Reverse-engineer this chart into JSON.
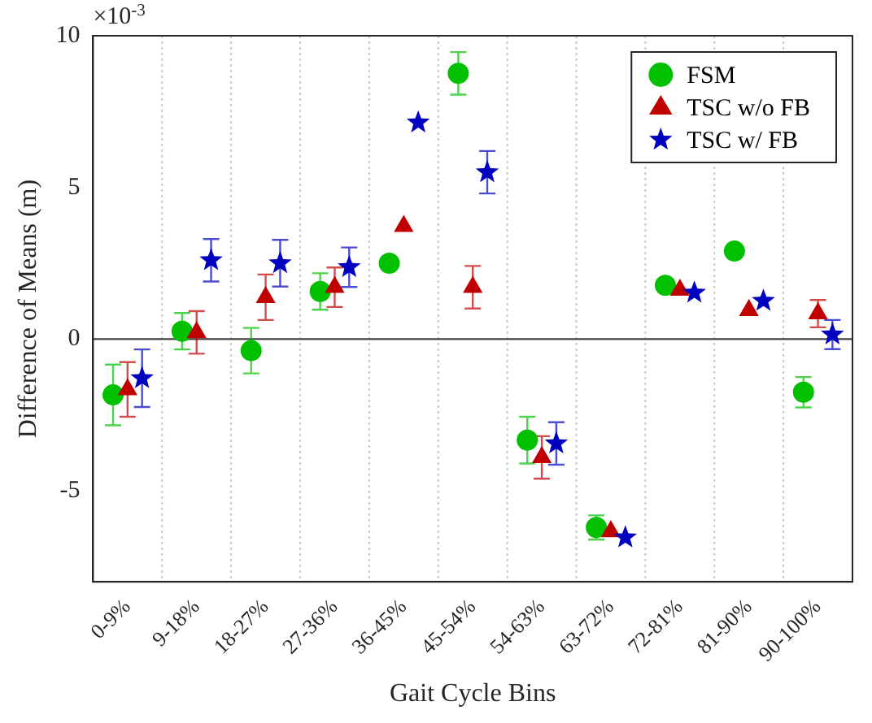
{
  "chart_data": {
    "type": "scatter",
    "xlabel": "Gait Cycle Bins",
    "ylabel": "Difference of Means (m)",
    "categories": [
      "0-9%",
      "9-18%",
      "18-27%",
      "27-36%",
      "36-45%",
      "45-54%",
      "54-63%",
      "63-72%",
      "72-81%",
      "81-90%",
      "90-100%"
    ],
    "series": [
      {
        "name": "FSM",
        "color": "#00c000",
        "marker": "circle",
        "values": [
          -1.84,
          0.26,
          -0.38,
          1.57,
          2.5,
          8.76,
          -3.33,
          -6.21,
          1.77,
          2.9,
          -1.75
        ],
        "errors": [
          1.0,
          0.6,
          0.75,
          0.6,
          null,
          0.7,
          0.77,
          0.4,
          null,
          null,
          0.5
        ]
      },
      {
        "name": "TSC w/o FB",
        "color": "#c00000",
        "marker": "triangle",
        "values": [
          -1.66,
          0.22,
          1.38,
          1.71,
          3.72,
          1.71,
          -3.9,
          -6.34,
          1.62,
          0.95,
          0.84
        ],
        "errors": [
          0.9,
          0.7,
          0.75,
          0.65,
          null,
          0.7,
          0.7,
          null,
          null,
          null,
          0.45
        ]
      },
      {
        "name": "TSC w/ FB",
        "color": "#0000c0",
        "marker": "star",
        "values": [
          -1.29,
          2.6,
          2.5,
          2.37,
          7.14,
          5.5,
          -3.44,
          -6.54,
          1.53,
          1.26,
          0.15
        ],
        "errors": [
          0.95,
          0.7,
          0.77,
          0.65,
          null,
          0.7,
          0.7,
          null,
          null,
          null,
          0.48
        ]
      }
    ],
    "ylim": [
      -8,
      10
    ],
    "yticks": [
      -5,
      0,
      5,
      10
    ],
    "ref_lines": [
      {
        "axis": "y",
        "value": 0,
        "color": "#404040"
      }
    ],
    "grid": "x",
    "legend": "top right",
    "annotations": [
      "×10$^{-3}$"
    ]
  }
}
